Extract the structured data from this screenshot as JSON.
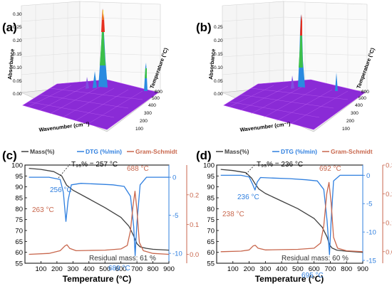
{
  "colors": {
    "mass": "#404040",
    "dtg": "#2f7fdf",
    "gs": "#c8664c",
    "surface_fill": "#8a2bd6",
    "surface_edge": "#b03cf0"
  },
  "panels": {
    "a": {
      "label": "(a)"
    },
    "b": {
      "label": "(b)"
    },
    "c": {
      "label": "(c)"
    },
    "d": {
      "label": "(d)"
    }
  },
  "ftir_3d": {
    "z_axis_label": "Absorbance",
    "x_axis_label": "Wavenumber (cm⁻¹)",
    "y_axis_label": "Temperature (°C)"
  },
  "chart_data": [
    {
      "panel": "(c)",
      "type": "line",
      "xlabel": "Temperature (°C)",
      "xlim": [
        0,
        900
      ],
      "x_ticks": [
        "100",
        "200",
        "300",
        "400",
        "500",
        "600",
        "700",
        "800",
        "900"
      ],
      "y_left_ticks": [
        "55",
        "60",
        "65",
        "70",
        "75",
        "80",
        "85",
        "90",
        "95",
        "100"
      ],
      "y_mid_ticks": [
        "-10",
        "-5",
        "0"
      ],
      "y_right_ticks": [
        "0.0",
        "0.1",
        "0.2"
      ],
      "ylim_mass": [
        55,
        100
      ],
      "ylim_dtg": [
        -11.3,
        1.6
      ],
      "ylim_gs": [
        -0.03,
        0.3
      ],
      "legend": [
        "Mass(%)",
        "DTG (%/min)",
        "Gram-Schmidt"
      ],
      "series": [
        {
          "name": "Mass(%)",
          "x": [
            25,
            100,
            180,
            230,
            260,
            300,
            400,
            500,
            600,
            650,
            680,
            700,
            720,
            760,
            800,
            900
          ],
          "values": [
            98.5,
            98.0,
            97.0,
            95.0,
            90.8,
            88.5,
            84.5,
            80.5,
            76.0,
            72.0,
            67.5,
            64.0,
            62.5,
            61.8,
            61.4,
            61.0
          ]
        },
        {
          "name": "DTG (%/min)",
          "x": [
            25,
            150,
            220,
            240,
            256,
            270,
            290,
            350,
            450,
            550,
            620,
            660,
            680,
            689,
            700,
            720,
            760,
            900
          ],
          "values": [
            0,
            0,
            -0.3,
            -2.0,
            -5.8,
            -3.0,
            -1.0,
            -0.8,
            -0.9,
            -1.0,
            -1.2,
            -2.5,
            -6.5,
            -10.3,
            -6.0,
            -1.0,
            0,
            0
          ]
        },
        {
          "name": "Gram-Schmidt",
          "x": [
            25,
            150,
            220,
            250,
            263,
            280,
            320,
            400,
            500,
            600,
            640,
            660,
            675,
            688,
            700,
            715,
            740,
            800,
            900
          ],
          "values": [
            0.0,
            0.003,
            0.012,
            0.028,
            0.032,
            0.02,
            0.012,
            0.013,
            0.014,
            0.018,
            0.03,
            0.08,
            0.16,
            0.212,
            0.15,
            0.04,
            0.012,
            0.003,
            0.0
          ]
        }
      ],
      "annotations": {
        "t95": "T₉₅% = 257 °C",
        "dtg_peak1": "256 °C",
        "dtg_peak2": "689 °C",
        "gs_peak1": "263 °C",
        "gs_peak2": "688 °C",
        "residual": "Residual mass: 61 %"
      }
    },
    {
      "panel": "(d)",
      "type": "line",
      "xlabel": "Temperature (°C)",
      "xlim": [
        0,
        900
      ],
      "x_ticks": [
        "100",
        "200",
        "300",
        "400",
        "500",
        "600",
        "700",
        "800",
        "900"
      ],
      "y_left_ticks": [
        "55",
        "60",
        "65",
        "70",
        "75",
        "80",
        "85",
        "90",
        "95",
        "100"
      ],
      "y_mid_ticks": [
        "-15",
        "-10",
        "-5",
        "0"
      ],
      "y_right_ticks": [
        "0.0",
        "0.1",
        "0.2",
        "0.3"
      ],
      "ylim_mass": [
        55,
        100
      ],
      "ylim_dtg": [
        -15.5,
        1.8
      ],
      "ylim_gs": [
        -0.04,
        0.3
      ],
      "legend": [
        "Mass(%)",
        "DTG (%/min)",
        "Gram-Schmidt"
      ],
      "series": [
        {
          "name": "Mass(%)",
          "x": [
            25,
            100,
            180,
            215,
            236,
            260,
            300,
            400,
            500,
            600,
            650,
            680,
            695,
            710,
            740,
            800,
            900
          ],
          "values": [
            98.0,
            97.5,
            96.5,
            94.0,
            91.5,
            89.0,
            87.0,
            83.5,
            80.0,
            75.5,
            71.5,
            67.0,
            63.5,
            62.0,
            61.0,
            60.5,
            60.0
          ]
        },
        {
          "name": "DTG (%/min)",
          "x": [
            25,
            150,
            200,
            220,
            236,
            250,
            270,
            350,
            450,
            550,
            620,
            660,
            680,
            695,
            705,
            720,
            760,
            900
          ],
          "values": [
            0,
            0,
            -0.3,
            -1.5,
            -2.6,
            -1.2,
            -0.4,
            -0.5,
            -0.6,
            -0.8,
            -1.0,
            -2.5,
            -8.0,
            -14.0,
            -8.0,
            -1.0,
            0,
            0
          ]
        },
        {
          "name": "Gram-Schmidt",
          "x": [
            25,
            150,
            200,
            225,
            238,
            255,
            300,
            400,
            500,
            600,
            640,
            660,
            678,
            692,
            705,
            720,
            745,
            800,
            900
          ],
          "values": [
            0.0,
            0.002,
            0.006,
            0.02,
            0.022,
            0.012,
            0.006,
            0.007,
            0.008,
            0.012,
            0.03,
            0.09,
            0.2,
            0.24,
            0.17,
            0.05,
            0.012,
            0.003,
            0.0
          ]
        }
      ],
      "annotations": {
        "t95": "T₉₅% = 236 °C",
        "dtg_peak1": "236 °C",
        "dtg_peak2": "695 °C",
        "gs_peak1": "238 °C",
        "gs_peak2": "692 °C",
        "residual": "Residual mass: 60 %"
      }
    }
  ]
}
